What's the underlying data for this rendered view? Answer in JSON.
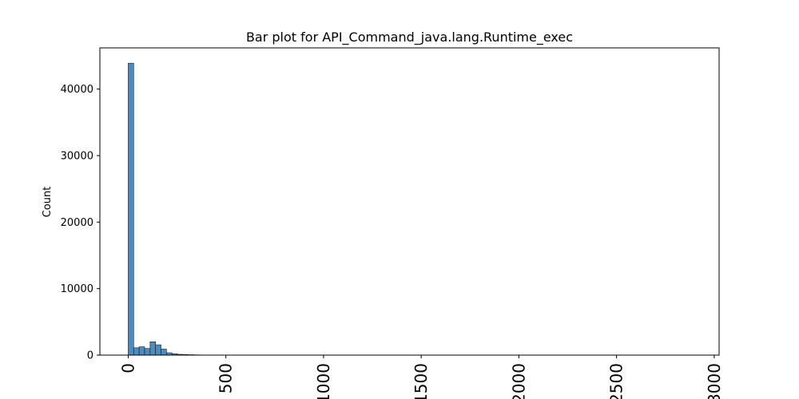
{
  "chart_data": {
    "type": "bar",
    "title": "Bar plot for API_Command_java.lang.Runtime_exec",
    "xlabel": "",
    "ylabel": "Count",
    "xlim": [
      -145,
      3025
    ],
    "ylim": [
      0,
      46200
    ],
    "x_ticks": [
      0,
      500,
      1000,
      1500,
      2000,
      2500,
      3000
    ],
    "x_tick_labels": [
      "0",
      "500",
      "1000",
      "1500",
      "2000",
      "2500",
      "3000"
    ],
    "y_ticks": [
      0,
      10000,
      20000,
      30000,
      40000
    ],
    "y_tick_labels": [
      "0",
      "10000",
      "20000",
      "30000",
      "40000"
    ],
    "grid": false,
    "legend": "none",
    "bin_width": 28,
    "bar_color": "#4c8cbf",
    "bar_edge_color": "#1a1a1a",
    "bins": [
      {
        "start": 0,
        "end": 28,
        "count": 43900
      },
      {
        "start": 28,
        "end": 56,
        "count": 1100
      },
      {
        "start": 56,
        "end": 84,
        "count": 1250
      },
      {
        "start": 84,
        "end": 112,
        "count": 1000
      },
      {
        "start": 112,
        "end": 140,
        "count": 2000
      },
      {
        "start": 140,
        "end": 168,
        "count": 1550
      },
      {
        "start": 168,
        "end": 196,
        "count": 900
      },
      {
        "start": 196,
        "end": 224,
        "count": 350
      },
      {
        "start": 224,
        "end": 252,
        "count": 200
      },
      {
        "start": 252,
        "end": 280,
        "count": 120
      },
      {
        "start": 280,
        "end": 308,
        "count": 80
      },
      {
        "start": 308,
        "end": 336,
        "count": 60
      },
      {
        "start": 336,
        "end": 364,
        "count": 40
      },
      {
        "start": 364,
        "end": 392,
        "count": 25
      },
      {
        "start": 392,
        "end": 420,
        "count": 15
      },
      {
        "start": 420,
        "end": 448,
        "count": 8
      },
      {
        "start": 448,
        "end": 476,
        "count": 5
      }
    ]
  }
}
